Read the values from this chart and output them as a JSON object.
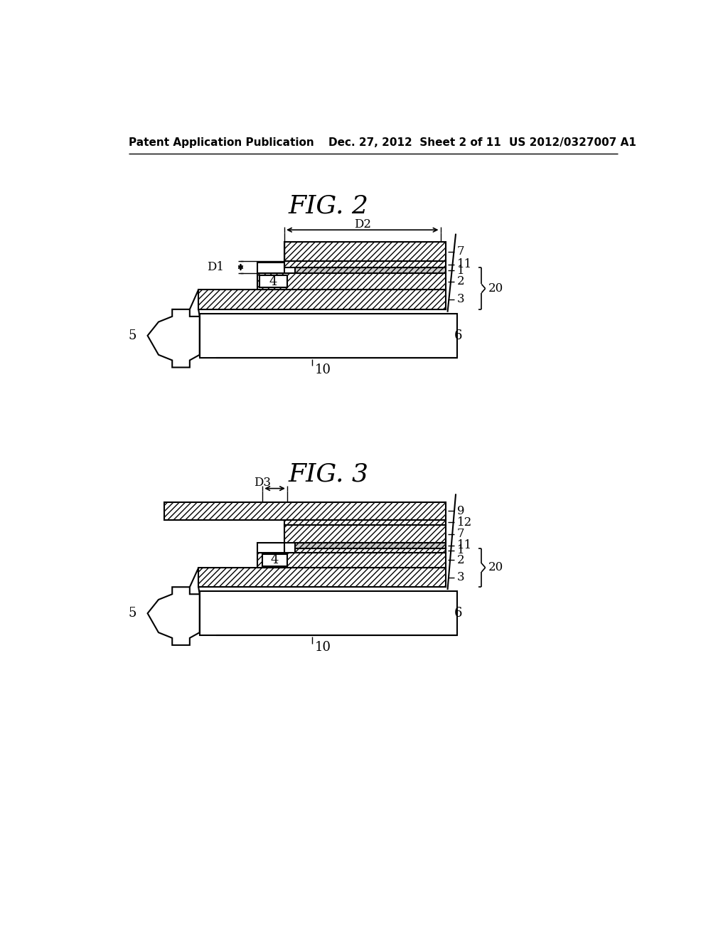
{
  "bg_color": "#ffffff",
  "header_left": "Patent Application Publication",
  "header_mid": "Dec. 27, 2012  Sheet 2 of 11",
  "header_right": "US 2012/0327007 A1",
  "fig2_title": "FIG. 2",
  "fig3_title": "FIG. 3"
}
